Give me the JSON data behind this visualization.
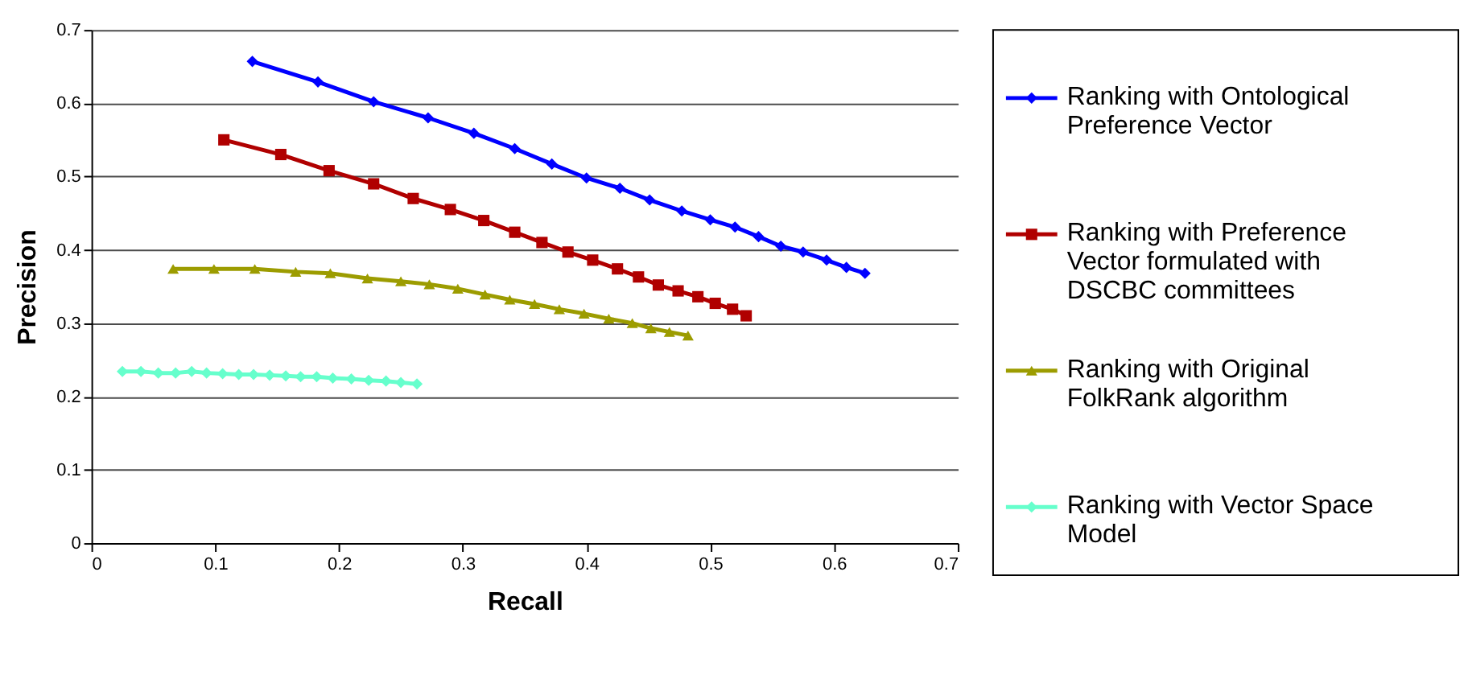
{
  "chart_data": {
    "type": "line",
    "xlabel": "Recall",
    "ylabel": "Precision",
    "xlim": [
      0,
      0.7
    ],
    "xticks": [
      0,
      0.1,
      0.2,
      0.3,
      0.4,
      0.5,
      0.6,
      0.7
    ],
    "ylim": [
      0,
      0.7
    ],
    "yticks": [
      0,
      0.1,
      0.2,
      0.3,
      0.4,
      0.5,
      0.6,
      0.7
    ],
    "grid": "y",
    "legend": "right",
    "line_style": "solid",
    "series": [
      {
        "name": "Ranking with Ontological Preference Vector",
        "color": "#0000ff",
        "marker": "diamond",
        "x": [
          0.13,
          0.183,
          0.228,
          0.272,
          0.309,
          0.342,
          0.372,
          0.4,
          0.427,
          0.451,
          0.477,
          0.5,
          0.52,
          0.539,
          0.557,
          0.575,
          0.594,
          0.61,
          0.625
        ],
        "values": [
          0.657,
          0.629,
          0.602,
          0.58,
          0.559,
          0.538,
          0.517,
          0.498,
          0.484,
          0.468,
          0.453,
          0.441,
          0.431,
          0.418,
          0.405,
          0.397,
          0.386,
          0.376,
          0.368
        ]
      },
      {
        "name": "Ranking with Preference Vector formulated with DSCBC committees",
        "color": "#b00000",
        "marker": "square",
        "x": [
          0.107,
          0.153,
          0.192,
          0.228,
          0.26,
          0.29,
          0.317,
          0.342,
          0.364,
          0.385,
          0.405,
          0.425,
          0.442,
          0.458,
          0.474,
          0.49,
          0.504,
          0.518,
          0.529
        ],
        "values": [
          0.55,
          0.53,
          0.508,
          0.49,
          0.47,
          0.455,
          0.44,
          0.424,
          0.41,
          0.397,
          0.386,
          0.374,
          0.363,
          0.352,
          0.344,
          0.336,
          0.327,
          0.319,
          0.31
        ]
      },
      {
        "name": "Ranking with Original FolkRank algorithm",
        "color": "#9c9c00",
        "marker": "triangle",
        "x": [
          0.066,
          0.099,
          0.132,
          0.165,
          0.193,
          0.223,
          0.25,
          0.273,
          0.296,
          0.318,
          0.338,
          0.358,
          0.378,
          0.398,
          0.418,
          0.437,
          0.452,
          0.467,
          0.482
        ],
        "values": [
          0.374,
          0.374,
          0.374,
          0.37,
          0.368,
          0.361,
          0.357,
          0.353,
          0.347,
          0.339,
          0.332,
          0.326,
          0.319,
          0.313,
          0.306,
          0.3,
          0.293,
          0.288,
          0.283
        ]
      },
      {
        "name": "Ranking with Vector Space Model",
        "color": "#66ffcc",
        "marker": "diamond",
        "x": [
          0.025,
          0.04,
          0.054,
          0.068,
          0.081,
          0.093,
          0.106,
          0.119,
          0.131,
          0.144,
          0.157,
          0.169,
          0.182,
          0.195,
          0.21,
          0.224,
          0.238,
          0.25,
          0.263
        ],
        "values": [
          0.234,
          0.234,
          0.232,
          0.232,
          0.234,
          0.232,
          0.231,
          0.23,
          0.23,
          0.229,
          0.228,
          0.227,
          0.227,
          0.225,
          0.224,
          0.222,
          0.221,
          0.219,
          0.217
        ]
      }
    ]
  }
}
